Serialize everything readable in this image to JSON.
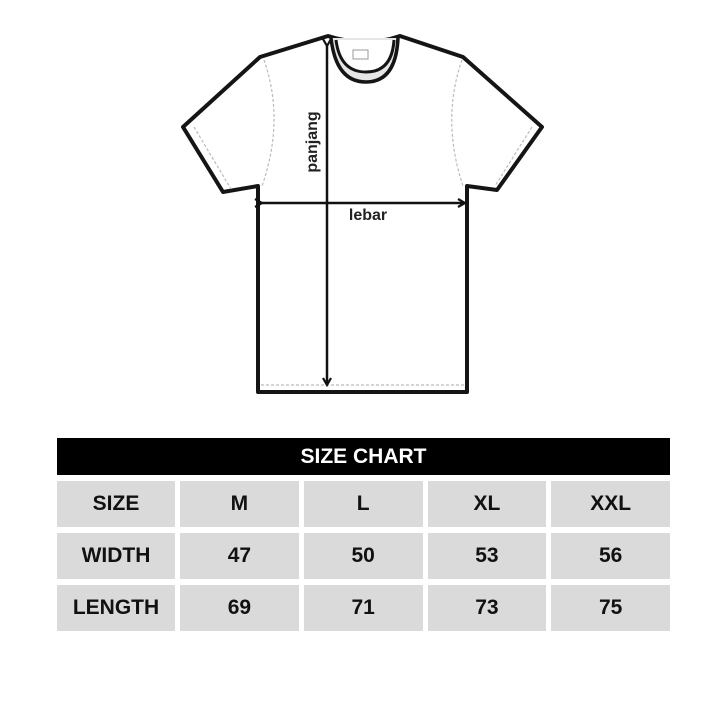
{
  "diagram": {
    "length_label": "panjang",
    "width_label": "lebar"
  },
  "table": {
    "title": "SIZE CHART",
    "rows": [
      {
        "label": "SIZE",
        "values": [
          "M",
          "L",
          "XL",
          "XXL"
        ]
      },
      {
        "label": "WIDTH",
        "values": [
          "47",
          "50",
          "53",
          "56"
        ]
      },
      {
        "label": "LENGTH",
        "values": [
          "69",
          "71",
          "73",
          "75"
        ]
      }
    ]
  },
  "colors": {
    "header_bg": "#000000",
    "cell_bg": "#dadada"
  }
}
